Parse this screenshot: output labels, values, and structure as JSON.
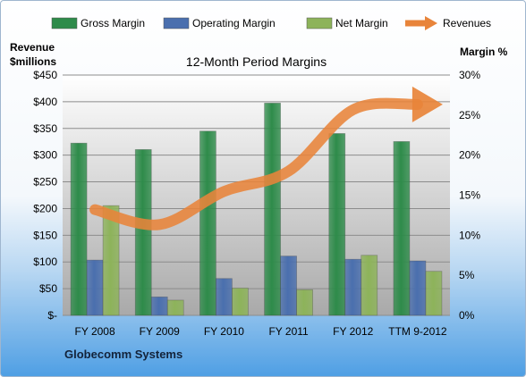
{
  "chart_data": {
    "type": "bar",
    "title": "12-Month Period Margins",
    "ylabel_left": "Revenue\n$millions",
    "ylabel_right": "Margin %",
    "categories": [
      "FY 2008",
      "FY 2009",
      "FY 2010",
      "FY 2011",
      "FY 2012",
      "TTM 9-2012"
    ],
    "ylim_left": [
      0,
      450
    ],
    "yticks_left": [
      "$-",
      "$50",
      "$100",
      "$150",
      "$200",
      "$250",
      "$300",
      "$350",
      "$400",
      "$450"
    ],
    "ylim_right": [
      0,
      30
    ],
    "yticks_right": [
      "0%",
      "5%",
      "10%",
      "15%",
      "20%",
      "25%",
      "30%"
    ],
    "grid": true,
    "legend_placement": "top",
    "series": [
      {
        "name": "Gross Margin",
        "axis": "right",
        "color": "#2e8b4a",
        "values": [
          21.5,
          20.7,
          23.0,
          26.5,
          22.7,
          21.7
        ]
      },
      {
        "name": "Operating Margin",
        "axis": "right",
        "color": "#4a6fae",
        "values": [
          6.9,
          2.3,
          4.6,
          7.4,
          7.0,
          6.8
        ]
      },
      {
        "name": "Net Margin",
        "axis": "right",
        "color": "#8db35a",
        "values": [
          13.7,
          1.9,
          3.4,
          3.2,
          7.5,
          5.5
        ]
      },
      {
        "name": "Revenues",
        "axis": "left",
        "type": "line",
        "color": "#e8843a",
        "values": [
          198,
          170,
          232,
          270,
          385,
          395
        ]
      }
    ]
  },
  "footer": {
    "company": "Globecomm Systems"
  }
}
